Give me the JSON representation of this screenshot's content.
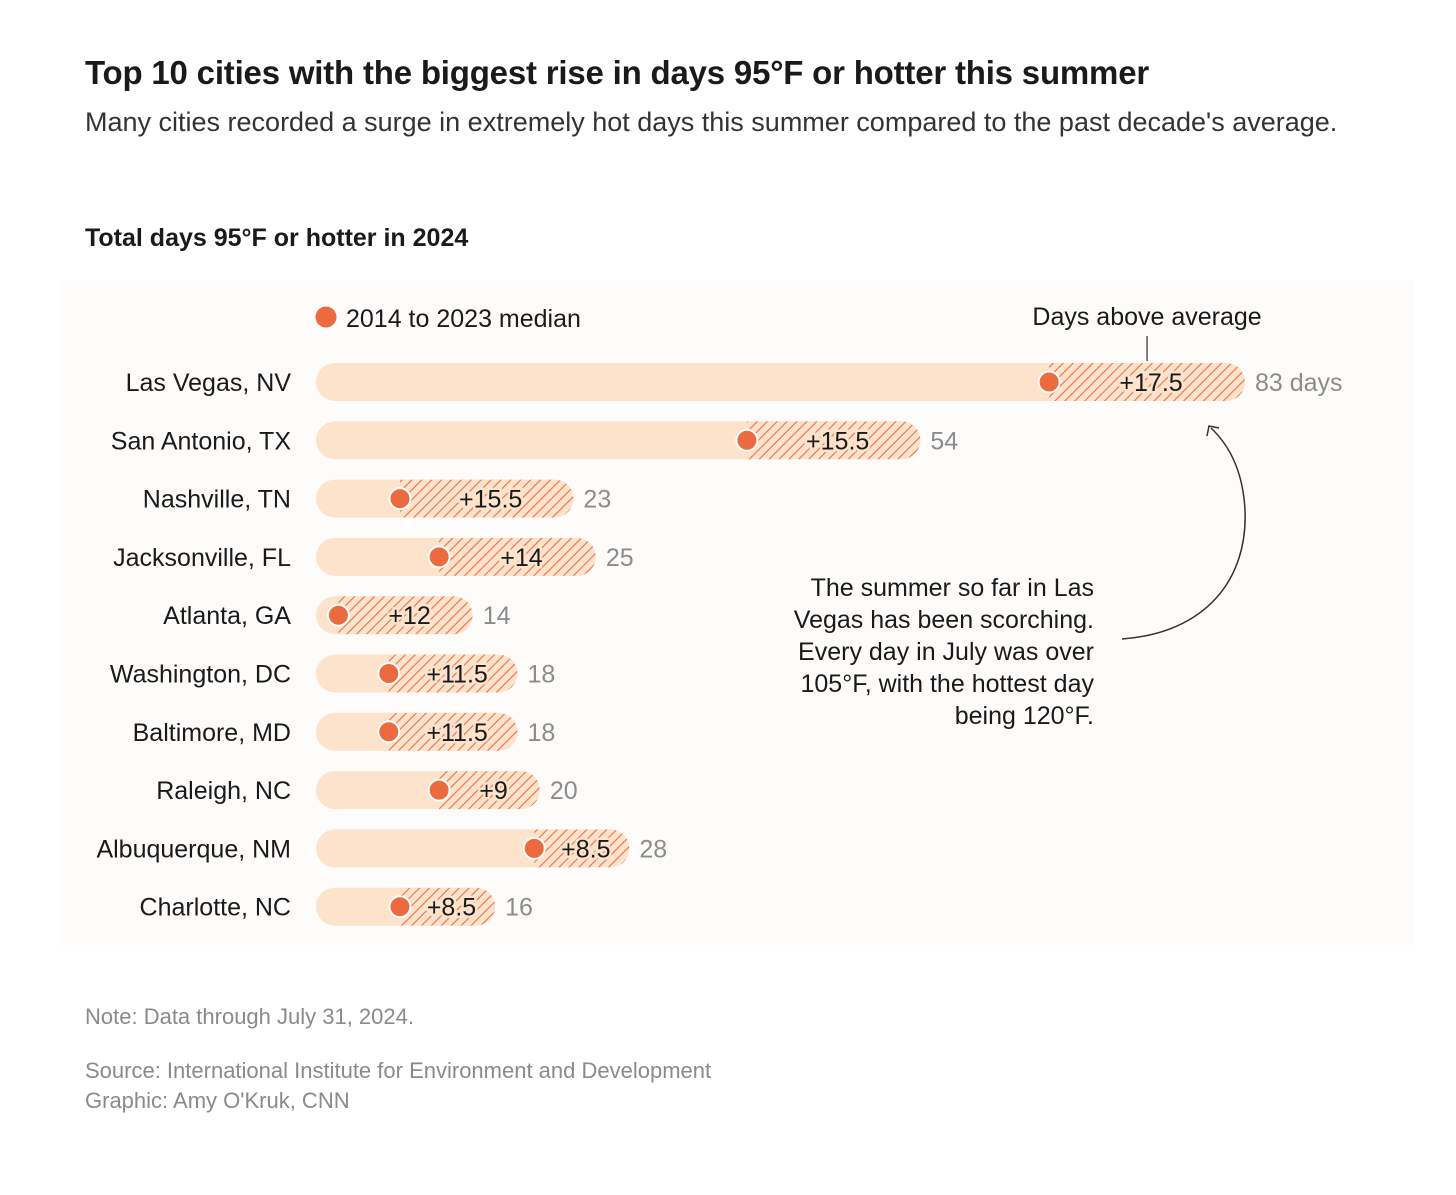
{
  "title": "Top 10 cities with the biggest rise in days 95°F or hotter this summer",
  "subtitle": "Many cities recorded a surge in extremely hot days this summer compared to the past decade's average.",
  "chart_heading": "Total days 95°F or hotter in 2024",
  "colors": {
    "bar_bg": "#fde2cc",
    "hatch": "#ef7044",
    "dot": "#ec6a3f",
    "total_label": "#8c8c8c",
    "text": "#1a1a1a"
  },
  "chart_data": {
    "type": "bar",
    "orientation": "horizontal",
    "legend": {
      "median_label": "2014 to 2023 median",
      "above_label": "Days above average"
    },
    "categories": [
      "Las Vegas, NV",
      "San Antonio, TX",
      "Nashville, TN",
      "Jacksonville, FL",
      "Atlanta, GA",
      "Washington, DC",
      "Baltimore, MD",
      "Raleigh, NC",
      "Albuquerque, NM",
      "Charlotte, NC"
    ],
    "series": [
      {
        "name": "Total days 95°F or hotter in 2024",
        "values": [
          83,
          54,
          23,
          25,
          14,
          18,
          18,
          20,
          28,
          16
        ]
      },
      {
        "name": "2014 to 2023 median",
        "values": [
          65.5,
          38.5,
          7.5,
          11,
          2,
          6.5,
          6.5,
          11,
          19.5,
          7.5
        ]
      },
      {
        "name": "Days above average",
        "values": [
          17.5,
          15.5,
          15.5,
          14,
          12,
          11.5,
          11.5,
          9,
          8.5,
          8.5
        ]
      }
    ],
    "diff_labels": [
      "+17.5",
      "+15.5",
      "+15.5",
      "+14",
      "+12",
      "+11.5",
      "+11.5",
      "+9",
      "+8.5",
      "+8.5"
    ],
    "total_labels": [
      "83 days",
      "54",
      "23",
      "25",
      "14",
      "18",
      "18",
      "20",
      "28",
      "16"
    ],
    "xlim": [
      0,
      83
    ],
    "annotation": {
      "lines": [
        "The summer so far in Las",
        "Vegas has been scorching.",
        "Every day in July was over",
        "105°F, with the hottest day",
        "being 120°F."
      ]
    }
  },
  "footer": {
    "note": "Note: Data through July 31, 2024.",
    "source": "Source: International Institute for Environment and Development",
    "graphic": "Graphic: Amy O'Kruk, CNN"
  }
}
